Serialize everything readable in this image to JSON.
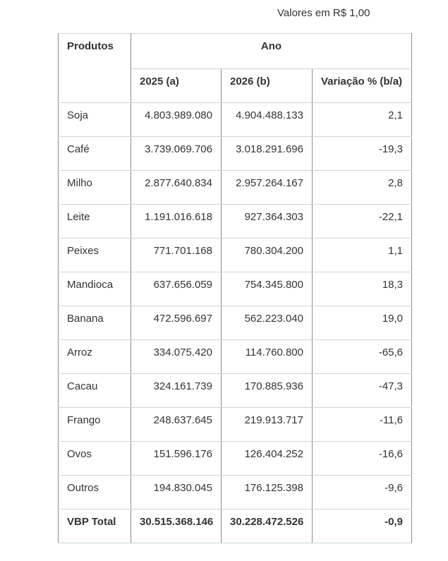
{
  "caption": "Valores em R$ 1,00",
  "table": {
    "header": {
      "products": "Produtos",
      "year_group": "Ano",
      "col_2025": "2025 (a)",
      "col_2026": "2026 (b)",
      "variation": "Variação % (b/a)"
    },
    "rows": [
      {
        "product": "Soja",
        "value_2025": "4.803.989.080",
        "value_2026": "4.904.488.133",
        "variation": "2,1"
      },
      {
        "product": "Café",
        "value_2025": "3.739.069.706",
        "value_2026": "3.018.291.696",
        "variation": "-19,3"
      },
      {
        "product": "Milho",
        "value_2025": "2.877.640.834",
        "value_2026": "2.957.264.167",
        "variation": "2,8"
      },
      {
        "product": "Leite",
        "value_2025": "1.191.016.618",
        "value_2026": "927.364.303",
        "variation": "-22,1"
      },
      {
        "product": "Peixes",
        "value_2025": "771.701.168",
        "value_2026": "780.304.200",
        "variation": "1,1"
      },
      {
        "product": "Mandioca",
        "value_2025": "637.656.059",
        "value_2026": "754.345.800",
        "variation": "18,3"
      },
      {
        "product": "Banana",
        "value_2025": "472.596.697",
        "value_2026": "562.223.040",
        "variation": "19,0"
      },
      {
        "product": "Arroz",
        "value_2025": "334.075.420",
        "value_2026": "114.760.800",
        "variation": "-65,6"
      },
      {
        "product": "Cacau",
        "value_2025": "324.161.739",
        "value_2026": "170.885.936",
        "variation": "-47,3"
      },
      {
        "product": "Frango",
        "value_2025": "248.637.645",
        "value_2026": "219.913.717",
        "variation": "-11,6"
      },
      {
        "product": "Ovos",
        "value_2025": "151.596.176",
        "value_2026": "126.404.252",
        "variation": "-16,6"
      },
      {
        "product": "Outros",
        "value_2025": "194.830.045",
        "value_2026": "176.125.398",
        "variation": "-9,6"
      }
    ],
    "total_row": {
      "product": "VBP Total",
      "value_2025": "30.515.368.146",
      "value_2026": "30.228.472.526",
      "variation": "-0,9"
    }
  },
  "colors": {
    "background": "#ffffff",
    "text": "#333333",
    "vertical_border": "#8a8a8a",
    "horizontal_border": "#c9d5da"
  }
}
